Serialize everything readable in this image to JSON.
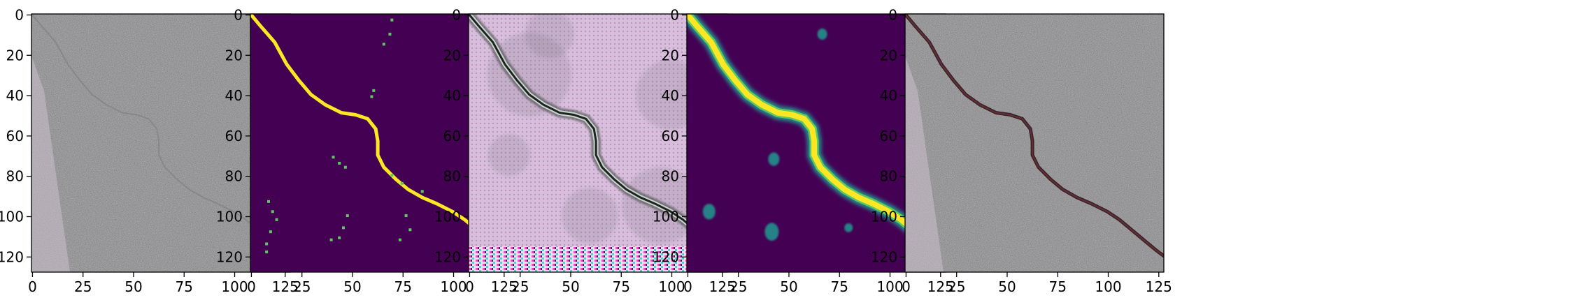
{
  "figure": {
    "panels": [
      {
        "id": "panel-1",
        "kind": "raw-concrete",
        "x_ticks": [
          "0",
          "25",
          "50",
          "75",
          "100",
          "125"
        ],
        "y_ticks": [
          "0",
          "20",
          "40",
          "60",
          "80",
          "100",
          "120"
        ]
      },
      {
        "id": "panel-2",
        "kind": "binary-mask",
        "x_ticks": [
          "0",
          "25",
          "50",
          "75",
          "100",
          "125"
        ],
        "y_ticks": [
          "0",
          "20",
          "40",
          "60",
          "80",
          "100",
          "120"
        ]
      },
      {
        "id": "panel-3",
        "kind": "feature-map",
        "x_ticks": [
          "0",
          "25",
          "50",
          "75",
          "100",
          "125"
        ],
        "y_ticks": [
          "0",
          "20",
          "40",
          "60",
          "80",
          "100",
          "120"
        ]
      },
      {
        "id": "panel-4",
        "kind": "probability-map",
        "x_ticks": [
          "0",
          "25",
          "50",
          "75",
          "100",
          "125"
        ],
        "y_ticks": [
          "0",
          "20",
          "40",
          "60",
          "80",
          "100",
          "120"
        ]
      },
      {
        "id": "panel-5",
        "kind": "overlay",
        "x_ticks": [
          "0",
          "25",
          "50",
          "75",
          "100",
          "125"
        ],
        "y_ticks": [
          "0",
          "20",
          "40",
          "60",
          "80",
          "100",
          "120"
        ]
      }
    ],
    "x_tick_values": [
      0,
      25,
      50,
      75,
      100,
      125
    ],
    "y_tick_values": [
      0,
      20,
      40,
      60,
      80,
      100,
      120
    ],
    "image_size": [
      128,
      128
    ],
    "crack_path": [
      [
        0,
        0
      ],
      [
        5,
        6
      ],
      [
        12,
        14
      ],
      [
        18,
        25
      ],
      [
        24,
        33
      ],
      [
        30,
        40
      ],
      [
        37,
        45
      ],
      [
        45,
        49
      ],
      [
        52,
        50
      ],
      [
        58,
        52
      ],
      [
        62,
        57
      ],
      [
        63,
        63
      ],
      [
        63,
        70
      ],
      [
        66,
        76
      ],
      [
        72,
        82
      ],
      [
        78,
        87
      ],
      [
        85,
        91
      ],
      [
        92,
        94
      ],
      [
        100,
        98
      ],
      [
        106,
        102
      ],
      [
        112,
        107
      ],
      [
        118,
        112
      ],
      [
        124,
        117
      ],
      [
        128,
        120
      ]
    ],
    "colors": {
      "viridis_dark": "#440154",
      "viridis_yellow": "#fde725",
      "viridis_teal": "#21918c",
      "viridis_green": "#5ec962",
      "concrete": "#b8b8ba",
      "axis": "#000000"
    }
  }
}
